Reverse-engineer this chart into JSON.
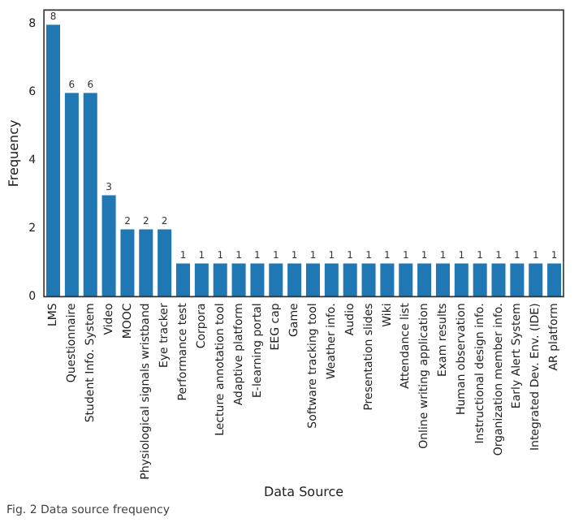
{
  "chart_data": {
    "type": "bar",
    "xlabel": "Data Source",
    "ylabel": "Frequency",
    "categories": [
      "LMS",
      "Questionnaire",
      "Student Info. System",
      "Video",
      "MOOC",
      "Physiological signals wristband",
      "Eye tracker",
      "Performance test",
      "Corpora",
      "Lecture annotation tool",
      "Adaptive platform",
      "E-learning portal",
      "EEG cap",
      "Game",
      "Software tracking tool",
      "Weather info.",
      "Audio",
      "Presentation slides",
      "Wiki",
      "Attendance list",
      "Online writing application",
      "Exam results",
      "Human observation",
      "Instructional design info.",
      "Organization member info.",
      "Early Alert System",
      "Integrated Dev. Env. (IDE)",
      "AR platform"
    ],
    "values": [
      8,
      6,
      6,
      3,
      2,
      2,
      2,
      1,
      1,
      1,
      1,
      1,
      1,
      1,
      1,
      1,
      1,
      1,
      1,
      1,
      1,
      1,
      1,
      1,
      1,
      1,
      1,
      1
    ],
    "color": "#1f77b4",
    "ylim": [
      0,
      8.4
    ],
    "yticks": [
      0,
      2,
      4,
      6,
      8
    ],
    "data_labels": true,
    "annotations": [
      "Fig. 2 Data source frequency"
    ]
  }
}
